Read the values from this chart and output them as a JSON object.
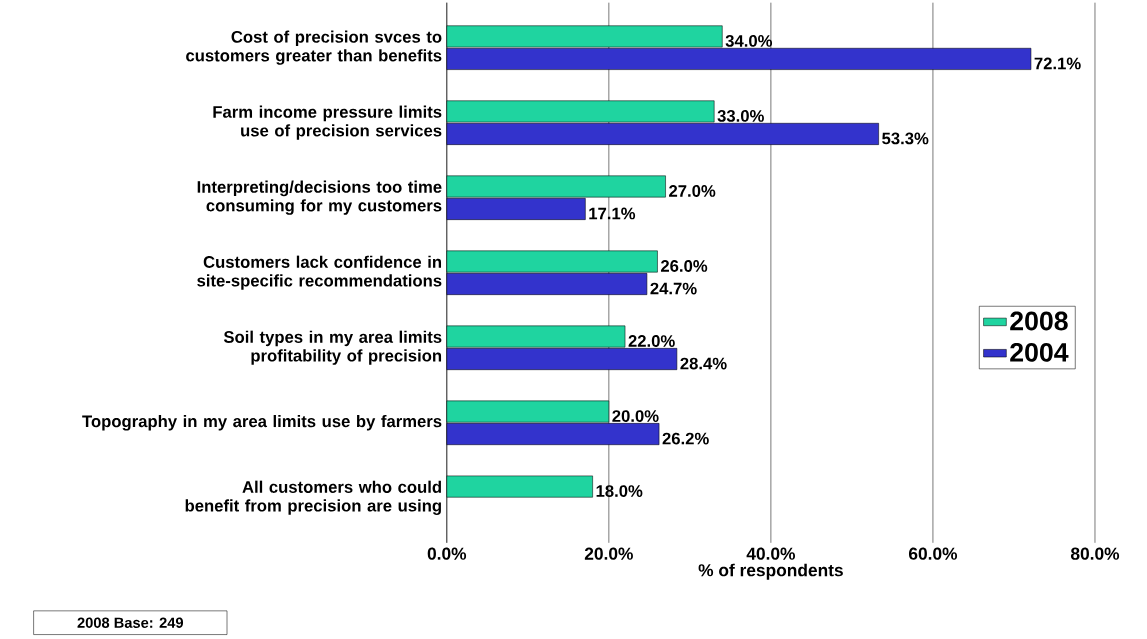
{
  "chart_data": {
    "type": "bar",
    "orientation": "horizontal",
    "xlabel": "% of respondents",
    "categories": [
      "Cost of precision svces to customers greater than benefits",
      "Farm income pressure limits use of precision services",
      "Interpreting/decisions too time consuming for my customers",
      "Customers lack confidence in site-specific recommendations",
      "Soil types in my area limits profitability of precision",
      "Topography in my area limits use by farmers",
      "All customers who could benefit from precision are using"
    ],
    "series": [
      {
        "name": "2008",
        "color": "#1fd4a0",
        "values": [
          34.0,
          33.0,
          27.0,
          26.0,
          22.0,
          20.0,
          18.0
        ],
        "value_labels": [
          "34.0%",
          "33.0%",
          "27.0%",
          "26.0%",
          "22.0%",
          "20.0%",
          "18.0%"
        ]
      },
      {
        "name": "2004",
        "color": "#3333cc",
        "values": [
          72.1,
          53.3,
          17.1,
          24.7,
          28.4,
          26.2,
          null
        ],
        "value_labels": [
          "72.1%",
          "53.3%",
          "17.1%",
          "24.7%",
          "28.4%",
          "26.2%",
          null
        ]
      }
    ],
    "xlim": [
      0,
      80
    ],
    "xticks": [
      {
        "value": 0,
        "label": "0.0%"
      },
      {
        "value": 20,
        "label": "20.0%"
      },
      {
        "value": 40,
        "label": "40.0%"
      },
      {
        "value": 60,
        "label": "60.0%"
      },
      {
        "value": 80,
        "label": "80.0%"
      }
    ],
    "grid": "x",
    "legend": "right",
    "annotations": [
      "2008 Base: 249"
    ]
  }
}
